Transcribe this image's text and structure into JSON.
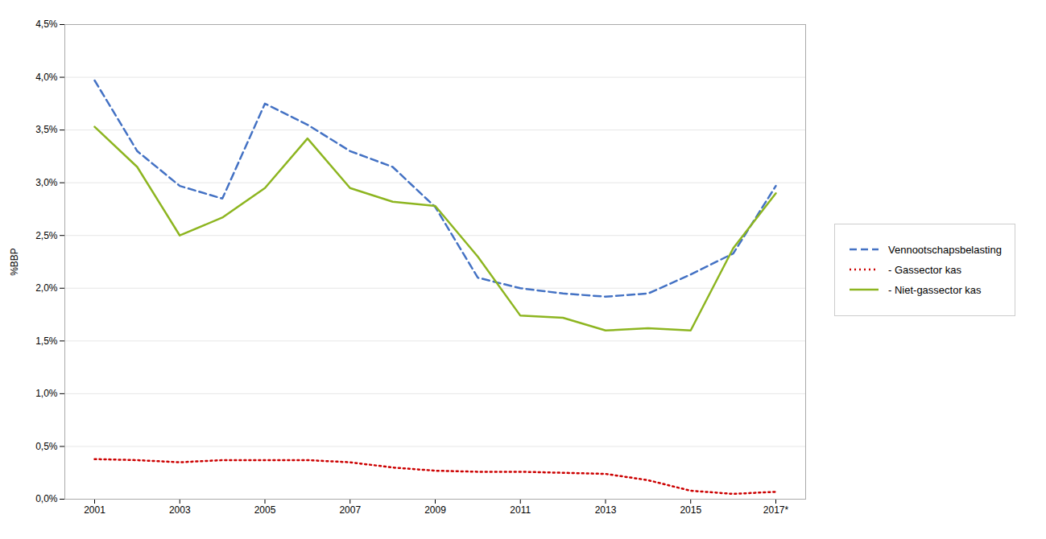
{
  "chart_data": {
    "type": "line",
    "x": [
      2001,
      2002,
      2003,
      2004,
      2005,
      2006,
      2007,
      2008,
      2009,
      2010,
      2011,
      2012,
      2013,
      2014,
      2015,
      2016,
      2017
    ],
    "series": [
      {
        "name": "Vennootschapsbelasting",
        "color": "#4472C4",
        "line_style": "dashed",
        "values": [
          3.97,
          3.3,
          2.97,
          2.85,
          3.75,
          3.55,
          3.3,
          3.15,
          2.77,
          2.1,
          2.0,
          1.95,
          1.92,
          1.95,
          2.13,
          2.33,
          2.97
        ]
      },
      {
        "name": "- Gassector kas",
        "color": "#CC0000",
        "line_style": "dotted",
        "values": [
          0.38,
          0.37,
          0.35,
          0.37,
          0.37,
          0.37,
          0.35,
          0.3,
          0.27,
          0.26,
          0.26,
          0.25,
          0.24,
          0.18,
          0.08,
          0.05,
          0.07
        ]
      },
      {
        "name": "- Niet-gassector kas",
        "color": "#8DB520",
        "line_style": "solid",
        "values": [
          3.53,
          3.15,
          2.5,
          2.67,
          2.95,
          3.42,
          2.95,
          2.82,
          2.78,
          2.3,
          1.74,
          1.72,
          1.6,
          1.62,
          1.6,
          2.38,
          2.9
        ]
      }
    ],
    "y_label": "%BBP",
    "xlim": [
      2000.3,
      2017.7
    ],
    "xticks": [
      2001,
      2003,
      2005,
      2007,
      2009,
      2011,
      2013,
      2015,
      {
        "value": 2017,
        "label": "2017*"
      }
    ],
    "ylim": [
      0.0,
      4.5
    ],
    "yticks": [
      {
        "value": 0.0,
        "label": "0,0%"
      },
      {
        "value": 0.5,
        "label": "0,5%"
      },
      {
        "value": 1.0,
        "label": "1,0%"
      },
      {
        "value": 1.5,
        "label": "1,5%"
      },
      {
        "value": 2.0,
        "label": "2,0%"
      },
      {
        "value": 2.5,
        "label": "2,5%"
      },
      {
        "value": 3.0,
        "label": "3,0%"
      },
      {
        "value": 3.5,
        "label": "3,5%"
      },
      {
        "value": 4.0,
        "label": "4,0%"
      },
      {
        "value": 4.5,
        "label": "4,5%"
      }
    ],
    "grid": true,
    "legend": "right"
  }
}
